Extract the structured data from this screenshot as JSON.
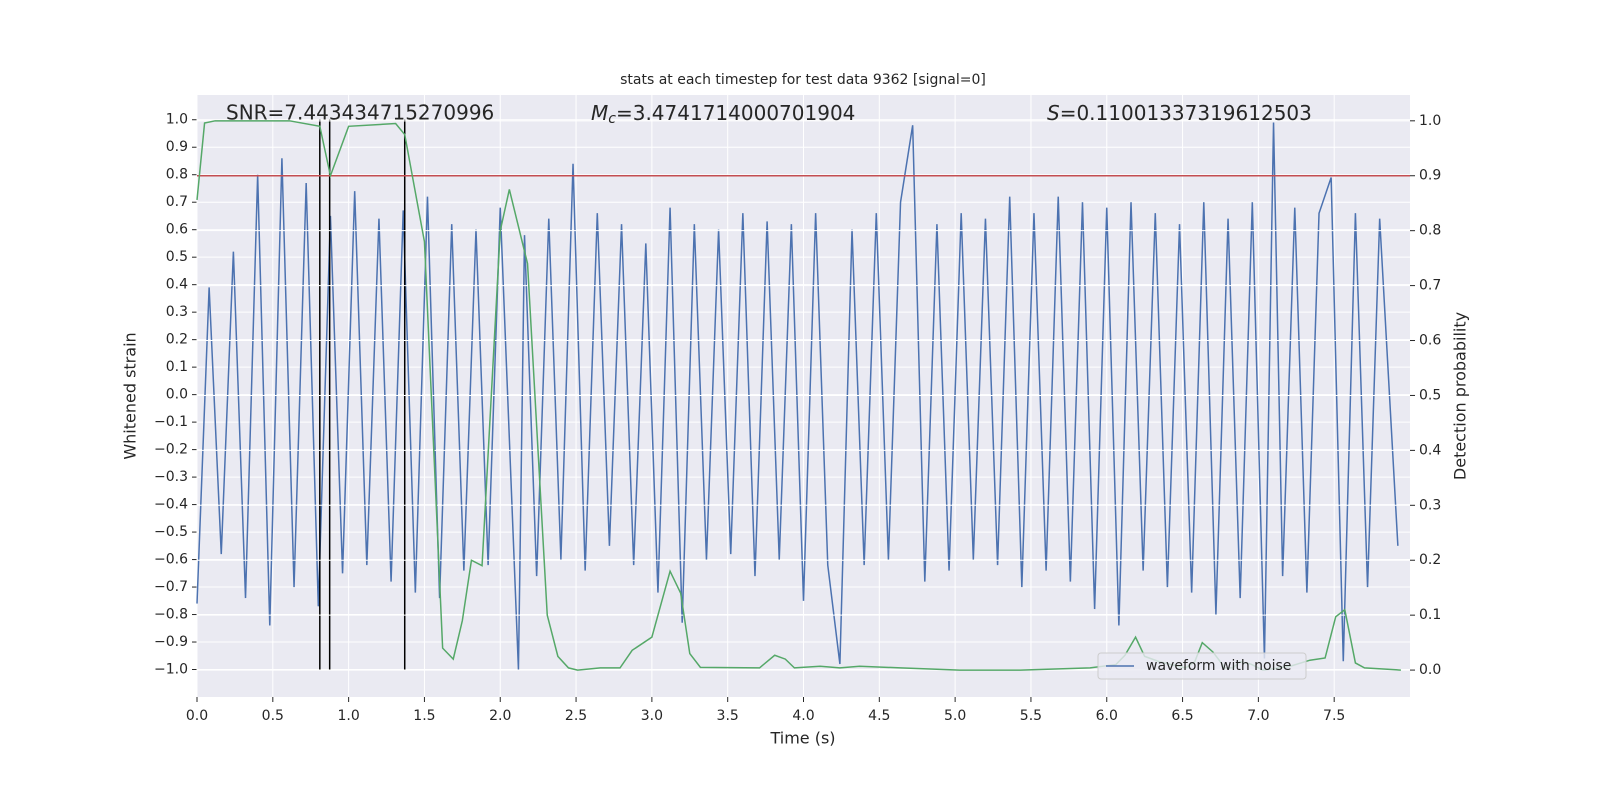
{
  "chart_data": {
    "type": "line",
    "title": "stats at each timestep for test data 9362 [signal=0]",
    "xlabel": "Time (s)",
    "ylabel": "Whitened strain",
    "y2label": "Detection probability",
    "annotations": [
      {
        "text": "SNR=7.443434715270996"
      },
      {
        "symbol": "M",
        "sub": "c",
        "text": "=3.4741714000701904"
      },
      {
        "symbol": "S",
        "text": "=0.11001337319612503"
      }
    ],
    "xlim": [
      0,
      8.0
    ],
    "ylim": [
      -1.1,
      1.09
    ],
    "y2lim": [
      -0.049,
      1.047
    ],
    "xticks": [
      {
        "value": 0,
        "label": "0.0"
      },
      {
        "value": 0.5,
        "label": "0.5"
      },
      {
        "value": 1,
        "label": "1.0"
      },
      {
        "value": 1.5,
        "label": "1.5"
      },
      {
        "value": 2,
        "label": "2.0"
      },
      {
        "value": 2.5,
        "label": "2.5"
      },
      {
        "value": 3,
        "label": "3.0"
      },
      {
        "value": 3.5,
        "label": "3.5"
      },
      {
        "value": 4,
        "label": "4.0"
      },
      {
        "value": 4.5,
        "label": "4.5"
      },
      {
        "value": 5,
        "label": "5.0"
      },
      {
        "value": 5.5,
        "label": "5.5"
      },
      {
        "value": 6,
        "label": "6.0"
      },
      {
        "value": 6.5,
        "label": "6.5"
      },
      {
        "value": 7,
        "label": "7.0"
      },
      {
        "value": 7.5,
        "label": "7.5"
      }
    ],
    "yticks": [
      {
        "value": -1,
        "label": "−1.0"
      },
      {
        "value": -0.9,
        "label": "−0.9"
      },
      {
        "value": -0.8,
        "label": "−0.8"
      },
      {
        "value": -0.7,
        "label": "−0.7"
      },
      {
        "value": -0.6,
        "label": "−0.6"
      },
      {
        "value": -0.5,
        "label": "−0.5"
      },
      {
        "value": -0.4,
        "label": "−0.4"
      },
      {
        "value": -0.3,
        "label": "−0.3"
      },
      {
        "value": -0.2,
        "label": "−0.2"
      },
      {
        "value": -0.1,
        "label": "−0.1"
      },
      {
        "value": 0,
        "label": "0.0"
      },
      {
        "value": 0.1,
        "label": "0.1"
      },
      {
        "value": 0.2,
        "label": "0.2"
      },
      {
        "value": 0.3,
        "label": "0.3"
      },
      {
        "value": 0.4,
        "label": "0.4"
      },
      {
        "value": 0.5,
        "label": "0.5"
      },
      {
        "value": 0.6,
        "label": "0.6"
      },
      {
        "value": 0.7,
        "label": "0.7"
      },
      {
        "value": 0.8,
        "label": "0.8"
      },
      {
        "value": 0.9,
        "label": "0.9"
      },
      {
        "value": 1,
        "label": "1.0"
      }
    ],
    "y2ticks": [
      {
        "value": 0,
        "label": "0.0"
      },
      {
        "value": 0.1,
        "label": "0.1"
      },
      {
        "value": 0.2,
        "label": "0.2"
      },
      {
        "value": 0.3,
        "label": "0.3"
      },
      {
        "value": 0.4,
        "label": "0.4"
      },
      {
        "value": 0.5,
        "label": "0.5"
      },
      {
        "value": 0.6,
        "label": "0.6"
      },
      {
        "value": 0.7,
        "label": "0.7"
      },
      {
        "value": 0.8,
        "label": "0.8"
      },
      {
        "value": 0.9,
        "label": "0.9"
      },
      {
        "value": 1,
        "label": "1.0"
      }
    ],
    "grid": true,
    "legend": "lower right",
    "series": [
      {
        "name": "waveform with noise",
        "color": "#4c72b0",
        "axis": "y",
        "x": [
          0,
          0.08,
          0.16,
          0.24,
          0.32,
          0.4,
          0.48,
          0.56,
          0.64,
          0.72,
          0.8,
          0.88,
          0.96,
          1.04,
          1.12,
          1.2,
          1.28,
          1.36,
          1.44,
          1.52,
          1.6,
          1.68,
          1.76,
          1.84,
          1.92,
          2.0,
          2.12,
          2.16,
          2.24,
          2.32,
          2.4,
          2.48,
          2.56,
          2.64,
          2.72,
          2.8,
          2.88,
          2.96,
          3.04,
          3.12,
          3.2,
          3.28,
          3.36,
          3.44,
          3.52,
          3.6,
          3.68,
          3.76,
          3.84,
          3.92,
          4.0,
          4.08,
          4.16,
          4.24,
          4.32,
          4.4,
          4.48,
          4.56,
          4.64,
          4.72,
          4.8,
          4.88,
          4.96,
          5.04,
          5.12,
          5.2,
          5.28,
          5.36,
          5.44,
          5.52,
          5.6,
          5.68,
          5.76,
          5.84,
          5.92,
          6.0,
          6.08,
          6.16,
          6.24,
          6.32,
          6.4,
          6.48,
          6.56,
          6.64,
          6.72,
          6.8,
          6.88,
          6.96,
          7.04,
          7.1,
          7.16,
          7.24,
          7.32,
          7.4,
          7.48,
          7.56,
          7.64,
          7.72,
          7.8,
          7.92
        ],
        "values": [
          -0.76,
          0.39,
          -0.58,
          0.52,
          -0.74,
          0.8,
          -0.84,
          0.86,
          -0.7,
          0.77,
          -0.77,
          0.65,
          -0.65,
          0.74,
          -0.62,
          0.64,
          -0.68,
          0.67,
          -0.72,
          0.72,
          -0.74,
          0.62,
          -0.64,
          0.6,
          -0.62,
          0.68,
          -1.0,
          0.58,
          -0.66,
          0.64,
          -0.6,
          0.84,
          -0.64,
          0.66,
          -0.55,
          0.62,
          -0.62,
          0.55,
          -0.72,
          0.68,
          -0.83,
          0.62,
          -0.6,
          0.6,
          -0.58,
          0.66,
          -0.66,
          0.63,
          -0.6,
          0.62,
          -0.75,
          0.66,
          -0.62,
          -0.98,
          0.6,
          -0.62,
          0.66,
          -0.6,
          0.7,
          0.98,
          -0.68,
          0.62,
          -0.64,
          0.66,
          -0.6,
          0.64,
          -0.62,
          0.72,
          -0.7,
          0.66,
          -0.64,
          0.72,
          -0.68,
          0.7,
          -0.78,
          0.68,
          -0.84,
          0.7,
          -0.64,
          0.66,
          -0.7,
          0.62,
          -0.72,
          0.7,
          -0.8,
          0.64,
          -0.74,
          0.7,
          -0.96,
          0.99,
          -0.66,
          0.68,
          -0.72,
          0.66,
          0.79,
          -0.97,
          0.66,
          -0.7,
          0.64,
          -0.55
        ]
      },
      {
        "color": "#55a868",
        "axis": "y2",
        "x": [
          0,
          0.05,
          0.12,
          0.61,
          0.81,
          0.88,
          1.0,
          1.31,
          1.37,
          1.5,
          1.62,
          1.69,
          1.75,
          1.81,
          1.88,
          2.0,
          2.06,
          2.18,
          2.31,
          2.38,
          2.45,
          2.51,
          2.66,
          2.79,
          2.87,
          3.0,
          3.12,
          3.19,
          3.25,
          3.32,
          3.71,
          3.81,
          3.88,
          3.94,
          4.11,
          4.24,
          4.37,
          4.64,
          5.03,
          5.43,
          5.89,
          6.06,
          6.12,
          6.19,
          6.25,
          6.35,
          6.52,
          6.58,
          6.63,
          6.7,
          6.78,
          6.83,
          6.88,
          6.95,
          7.03,
          7.21,
          7.34,
          7.44,
          7.51,
          7.57,
          7.64,
          7.7,
          7.94
        ],
        "values": [
          0.856,
          0.996,
          1.0,
          1.0,
          0.99,
          0.9,
          0.99,
          0.995,
          0.975,
          0.78,
          0.04,
          0.02,
          0.09,
          0.2,
          0.19,
          0.8,
          0.875,
          0.74,
          0.1,
          0.025,
          0.004,
          0,
          0.004,
          0.004,
          0.036,
          0.06,
          0.18,
          0.14,
          0.03,
          0.005,
          0.004,
          0.027,
          0.02,
          0.004,
          0.007,
          0.004,
          0.007,
          0.004,
          0,
          0,
          0.004,
          0.01,
          0.027,
          0.06,
          0.025,
          0.015,
          0.004,
          0.015,
          0.05,
          0.033,
          0.004,
          0.004,
          0.015,
          0.011,
          0,
          0.007,
          0.018,
          0.022,
          0.097,
          0.11,
          0.013,
          0.004,
          0
        ]
      }
    ],
    "hline": {
      "value": 0.9,
      "axis": "y2",
      "color": "#c44e52"
    },
    "vlines": {
      "x": [
        0.81,
        0.875,
        1.37
      ],
      "ymin": -1.0,
      "ymax": 1.0,
      "color": "#000000"
    }
  }
}
